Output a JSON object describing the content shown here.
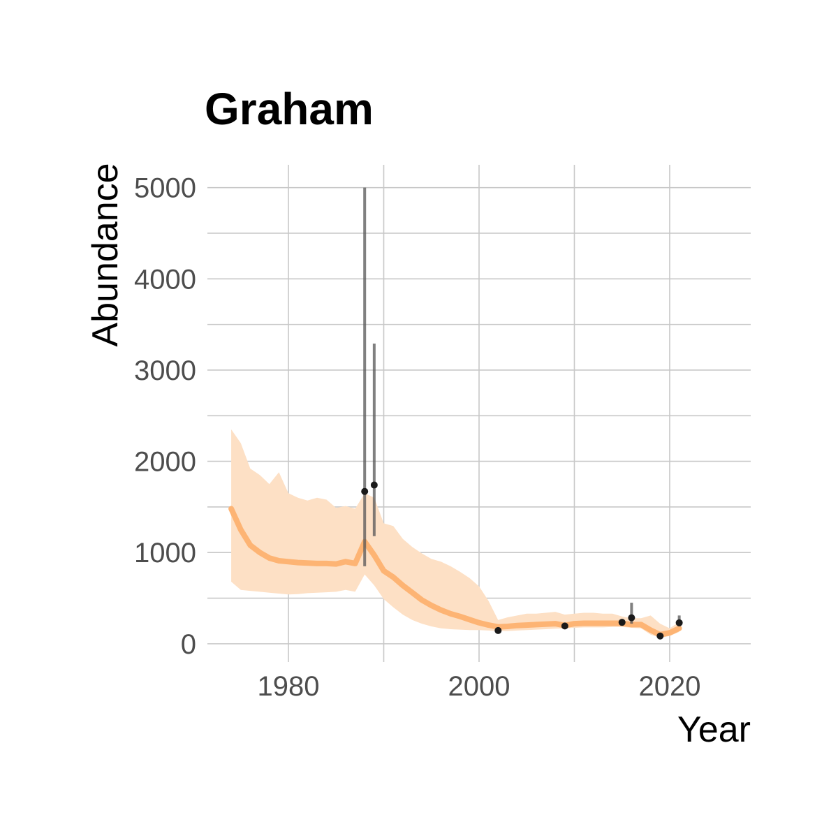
{
  "chart_data": {
    "type": "line",
    "title": "Graham",
    "xlabel": "Year",
    "ylabel": "Abundance",
    "xlim": [
      1971.5,
      2028.5
    ],
    "ylim": [
      -200,
      5250
    ],
    "x_ticks": [
      1980,
      2000,
      2020
    ],
    "x_tick_labels": [
      "1980",
      "2000",
      "2020"
    ],
    "y_ticks": [
      0,
      1000,
      2000,
      3000,
      4000,
      5000
    ],
    "y_tick_labels": [
      "0",
      "1000",
      "2000",
      "3000",
      "4000",
      "5000"
    ],
    "grid": true,
    "colors": {
      "trend": "#fdb474",
      "ribbon": "#fde0c5",
      "points": "#1a1a1a",
      "errorbars": "#555555",
      "grid": "#c8c8c8"
    },
    "trend": {
      "x": [
        1974,
        1975,
        1976,
        1977,
        1978,
        1979,
        1980,
        1981,
        1982,
        1983,
        1984,
        1985,
        1986,
        1987,
        1988,
        1989,
        1990,
        1991,
        1992,
        1993,
        1994,
        1995,
        1996,
        1997,
        1998,
        1999,
        2000,
        2001,
        2002,
        2003,
        2004,
        2005,
        2006,
        2007,
        2008,
        2009,
        2010,
        2011,
        2012,
        2013,
        2014,
        2015,
        2016,
        2017,
        2018,
        2019,
        2020,
        2021
      ],
      "y": [
        1480,
        1250,
        1080,
        1000,
        940,
        910,
        900,
        890,
        885,
        880,
        880,
        875,
        900,
        880,
        1120,
        970,
        800,
        730,
        640,
        560,
        480,
        420,
        370,
        330,
        300,
        265,
        230,
        205,
        185,
        190,
        200,
        205,
        210,
        215,
        220,
        200,
        220,
        225,
        225,
        225,
        225,
        225,
        210,
        210,
        150,
        100,
        120,
        170
      ],
      "lower": [
        680,
        590,
        580,
        570,
        560,
        550,
        540,
        545,
        555,
        560,
        565,
        570,
        590,
        570,
        760,
        640,
        490,
        400,
        320,
        260,
        220,
        190,
        170,
        160,
        155,
        150,
        150,
        145,
        140,
        140,
        145,
        150,
        155,
        160,
        165,
        170,
        175,
        180,
        180,
        180,
        185,
        185,
        175,
        170,
        100,
        65,
        85,
        130
      ],
      "upper": [
        2350,
        2200,
        1920,
        1850,
        1750,
        1880,
        1650,
        1600,
        1570,
        1600,
        1580,
        1490,
        1510,
        1480,
        1650,
        1600,
        1320,
        1290,
        1150,
        1060,
        990,
        930,
        900,
        850,
        790,
        720,
        630,
        470,
        260,
        290,
        310,
        330,
        330,
        340,
        350,
        320,
        330,
        340,
        340,
        330,
        330,
        300,
        280,
        280,
        310,
        220,
        170,
        240
      ]
    },
    "observations": [
      {
        "x": 1988,
        "y": 1670,
        "lo": 850,
        "hi": 5000
      },
      {
        "x": 1989,
        "y": 1740,
        "lo": 1180,
        "hi": 3290
      },
      {
        "x": 2002,
        "y": 145,
        "lo": 145,
        "hi": 145
      },
      {
        "x": 2009,
        "y": 195,
        "lo": 195,
        "hi": 195
      },
      {
        "x": 2015,
        "y": 235,
        "lo": 235,
        "hi": 235
      },
      {
        "x": 2016,
        "y": 285,
        "lo": 220,
        "hi": 450
      },
      {
        "x": 2019,
        "y": 85,
        "lo": 85,
        "hi": 85
      },
      {
        "x": 2021,
        "y": 230,
        "lo": 190,
        "hi": 310
      }
    ]
  }
}
